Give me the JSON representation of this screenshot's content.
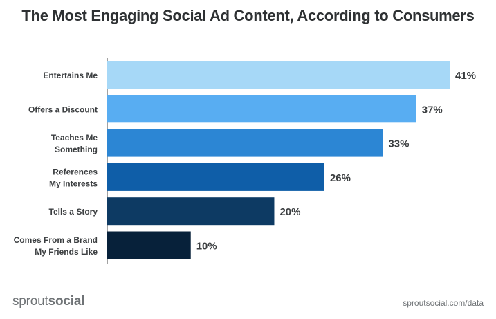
{
  "chart_data": {
    "type": "bar",
    "orientation": "horizontal",
    "title": "The Most Engaging Social Ad Content, According to Consumers",
    "categories": [
      [
        "Entertains Me"
      ],
      [
        "Offers a Discount"
      ],
      [
        "Teaches Me",
        "Something"
      ],
      [
        "References",
        "My Interests"
      ],
      [
        "Tells a Story"
      ],
      [
        "Comes From a Brand",
        "My Friends Like"
      ]
    ],
    "values": [
      41,
      37,
      33,
      26,
      20,
      10
    ],
    "value_labels": [
      "41%",
      "37%",
      "33%",
      "26%",
      "20%",
      "10%"
    ],
    "colors": [
      "#a6d8f7",
      "#58adf2",
      "#2c86d4",
      "#0f5ea8",
      "#0d3a63",
      "#07213a"
    ],
    "xlim": [
      0,
      41
    ],
    "grid": false,
    "legend": "none"
  },
  "footer": {
    "brand_light": "sprout",
    "brand_bold": "social",
    "source": "sproutsocial.com/data"
  }
}
